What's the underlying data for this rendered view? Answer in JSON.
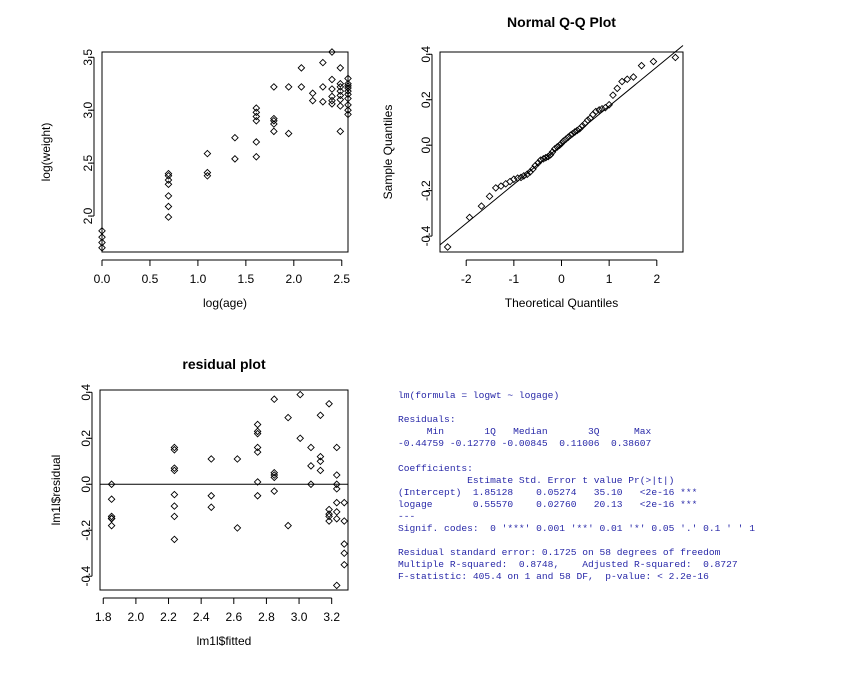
{
  "chart_data": [
    {
      "type": "scatter",
      "title": "",
      "xlabel": "log(age)",
      "ylabel": "log(weight)",
      "xlim": [
        0,
        2.565
      ],
      "ylim": [
        1.66,
        3.55
      ],
      "xticks": [
        0.0,
        0.5,
        1.0,
        1.5,
        2.0,
        2.5
      ],
      "xtick_labels": [
        "0.0",
        "0.5",
        "1.0",
        "1.5",
        "2.0",
        "2.5"
      ],
      "yticks": [
        2.0,
        2.5,
        3.0,
        3.5
      ],
      "ytick_labels": [
        "2.0",
        "2.5",
        "3.0",
        "3.5"
      ],
      "x": [
        0,
        0,
        0,
        0,
        0.693,
        0.693,
        0.693,
        0.693,
        0.693,
        0.693,
        0.693,
        1.099,
        1.099,
        1.099,
        1.386,
        1.386,
        1.609,
        1.609,
        1.609,
        1.609,
        1.609,
        1.609,
        1.792,
        1.792,
        1.792,
        1.792,
        1.792,
        1.946,
        1.946,
        2.079,
        2.079,
        2.197,
        2.197,
        2.303,
        2.303,
        2.303,
        2.398,
        2.398,
        2.398,
        2.398,
        2.398,
        2.485,
        2.485,
        2.485,
        2.485,
        2.485,
        2.485,
        2.485,
        2.485,
        2.565,
        2.565,
        2.565,
        2.565,
        2.565,
        2.565,
        2.565,
        2.565,
        2.565,
        2.565,
        2.398
      ],
      "y": [
        1.7,
        1.75,
        1.8,
        1.86,
        1.99,
        2.09,
        2.19,
        2.3,
        2.34,
        2.38,
        2.4,
        2.38,
        2.41,
        2.59,
        2.54,
        2.74,
        2.56,
        2.7,
        2.9,
        2.94,
        2.98,
        3.02,
        2.8,
        2.87,
        2.9,
        2.92,
        3.22,
        2.78,
        3.22,
        3.22,
        3.4,
        3.09,
        3.16,
        3.08,
        3.22,
        3.45,
        3.06,
        3.09,
        3.13,
        3.2,
        3.55,
        2.8,
        3.04,
        3.1,
        3.14,
        3.18,
        3.22,
        3.25,
        3.4,
        2.96,
        3.0,
        3.05,
        3.11,
        3.15,
        3.18,
        3.21,
        3.23,
        3.25,
        3.3,
        3.29
      ]
    },
    {
      "type": "scatter",
      "title": "Normal Q-Q Plot",
      "xlabel": "Theoretical Quantiles",
      "ylabel": "Sample Quantiles",
      "xlim": [
        -2.55,
        2.55
      ],
      "ylim": [
        -0.47,
        0.41
      ],
      "xticks": [
        -2,
        -1,
        0,
        1,
        2
      ],
      "xtick_labels": [
        "-2",
        "-1",
        "0",
        "1",
        "2"
      ],
      "yticks": [
        -0.4,
        -0.2,
        0.0,
        0.2,
        0.4
      ],
      "ytick_labels": [
        "-0.4",
        "-0.2",
        "0.0",
        "0.2",
        "0.4"
      ],
      "reference_line": {
        "intercept": 0,
        "slope": 0.172
      },
      "x": [
        -2.39,
        -1.93,
        -1.68,
        -1.51,
        -1.38,
        -1.27,
        -1.17,
        -1.08,
        -1.0,
        -0.92,
        -0.85,
        -0.79,
        -0.72,
        -0.66,
        -0.6,
        -0.55,
        -0.49,
        -0.44,
        -0.38,
        -0.33,
        -0.28,
        -0.23,
        -0.19,
        -0.14,
        -0.09,
        -0.04,
        0.0,
        0.04,
        0.09,
        0.14,
        0.19,
        0.23,
        0.28,
        0.33,
        0.38,
        0.44,
        0.49,
        0.55,
        0.6,
        0.66,
        0.72,
        0.79,
        0.85,
        0.92,
        1.0,
        1.08,
        1.17,
        1.27,
        1.38,
        1.51,
        1.68,
        1.93,
        2.39
      ],
      "y": [
        -0.448,
        -0.318,
        -0.268,
        -0.225,
        -0.188,
        -0.18,
        -0.17,
        -0.16,
        -0.15,
        -0.145,
        -0.142,
        -0.135,
        -0.128,
        -0.118,
        -0.105,
        -0.09,
        -0.078,
        -0.066,
        -0.06,
        -0.055,
        -0.05,
        -0.042,
        -0.03,
        -0.016,
        -0.008,
        0.0,
        0.008,
        0.018,
        0.026,
        0.035,
        0.044,
        0.05,
        0.058,
        0.065,
        0.072,
        0.085,
        0.095,
        0.11,
        0.118,
        0.135,
        0.148,
        0.155,
        0.16,
        0.165,
        0.178,
        0.22,
        0.25,
        0.28,
        0.29,
        0.3,
        0.35,
        0.368,
        0.386
      ]
    },
    {
      "type": "scatter",
      "title": "residual plot",
      "xlabel": "lm1l$fitted",
      "ylabel": "lm1l$residual",
      "xlim": [
        1.78,
        3.3
      ],
      "ylim": [
        -0.46,
        0.41
      ],
      "xticks": [
        1.8,
        2.0,
        2.2,
        2.4,
        2.6,
        2.8,
        3.0,
        3.2
      ],
      "xtick_labels": [
        "1.8",
        "2.0",
        "2.2",
        "2.4",
        "2.6",
        "2.8",
        "3.0",
        "3.2"
      ],
      "yticks": [
        -0.4,
        -0.2,
        0.0,
        0.2,
        0.4
      ],
      "ytick_labels": [
        "-0.4",
        "-0.2",
        "0.0",
        "0.2",
        "0.4"
      ],
      "reference_line": {
        "intercept": 0,
        "slope": 0
      },
      "x": [
        1.851,
        1.851,
        1.851,
        1.851,
        1.851,
        1.851,
        2.236,
        2.236,
        2.236,
        2.236,
        2.236,
        2.236,
        2.236,
        2.236,
        2.462,
        2.462,
        2.462,
        2.622,
        2.622,
        2.746,
        2.746,
        2.746,
        2.746,
        2.746,
        2.746,
        2.746,
        2.848,
        2.848,
        2.848,
        2.848,
        2.848,
        2.933,
        2.933,
        3.007,
        3.007,
        3.073,
        3.073,
        3.073,
        3.131,
        3.131,
        3.131,
        3.131,
        3.184,
        3.184,
        3.184,
        3.184,
        3.184,
        3.231,
        3.231,
        3.231,
        3.231,
        3.231,
        3.231,
        3.231,
        3.231,
        3.277,
        3.277,
        3.277,
        3.277,
        3.277
      ],
      "y": [
        -0.18,
        -0.15,
        -0.14,
        -0.065,
        0.0,
        -0.148,
        -0.24,
        -0.14,
        -0.045,
        0.06,
        0.07,
        0.15,
        0.16,
        -0.095,
        -0.05,
        0.11,
        -0.1,
        0.11,
        -0.19,
        -0.05,
        0.14,
        0.16,
        0.22,
        0.23,
        0.26,
        0.01,
        -0.03,
        0.03,
        0.04,
        0.05,
        0.37,
        -0.18,
        0.29,
        0.2,
        0.39,
        0.0,
        0.08,
        0.16,
        0.06,
        0.1,
        0.12,
        0.3,
        0.35,
        -0.11,
        -0.13,
        -0.16,
        -0.14,
        -0.44,
        0.16,
        0.04,
        0.0,
        -0.02,
        -0.08,
        -0.12,
        -0.15,
        -0.35,
        -0.3,
        -0.26,
        -0.16,
        -0.08
      ]
    }
  ],
  "summary": {
    "lines": [
      "lm(formula = logwt ~ logage)",
      "",
      "Residuals:",
      "     Min       1Q   Median       3Q      Max",
      "-0.44759 -0.12770 -0.00845  0.11006  0.38607",
      "",
      "Coefficients:",
      "            Estimate Std. Error t value Pr(>|t|)",
      "(Intercept)  1.85128    0.05274   35.10   <2e-16 ***",
      "logage       0.55570    0.02760   20.13   <2e-16 ***",
      "---",
      "Signif. codes:  0 '***' 0.001 '**' 0.01 '*' 0.05 '.' 0.1 ' ' 1",
      "",
      "Residual standard error: 0.1725 on 58 degrees of freedom",
      "Multiple R-squared:  0.8748,    Adjusted R-squared:  0.8727",
      "F-statistic: 405.4 on 1 and 58 DF,  p-value: < 2.2e-16"
    ],
    "color": "#2828a8"
  }
}
